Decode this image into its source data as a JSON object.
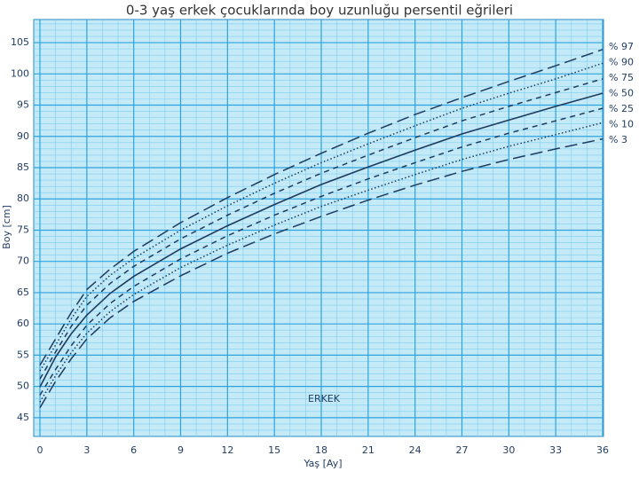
{
  "chart_data": {
    "type": "line",
    "title": "0-3 yaş erkek çocuklarında boy uzunluğu persentil eğrileri",
    "x_label": "Yaş [Ay]",
    "y_label": "Boy [cm]",
    "annotation": "ERKEK",
    "x": [
      0,
      1,
      2,
      3,
      4.5,
      6,
      9,
      12,
      15,
      18,
      21,
      24,
      27,
      30,
      33,
      36
    ],
    "series": [
      {
        "name": "% 97",
        "color": "#1f3a5f",
        "style": "long-dash",
        "values": [
          53.4,
          57.6,
          61.8,
          65.5,
          68.8,
          71.6,
          76.2,
          80.2,
          83.9,
          87.3,
          90.5,
          93.5,
          96.2,
          98.8,
          101.3,
          103.9
        ]
      },
      {
        "name": "% 90",
        "color": "#1f3a5f",
        "style": "dotted",
        "values": [
          52.5,
          56.6,
          60.8,
          64.4,
          67.8,
          70.5,
          75.0,
          78.9,
          82.5,
          85.8,
          88.8,
          91.7,
          94.5,
          96.9,
          99.2,
          101.7
        ]
      },
      {
        "name": "% 75",
        "color": "#1f3a5f",
        "style": "dashed",
        "values": [
          51.2,
          55.5,
          59.6,
          63.0,
          66.5,
          69.2,
          73.6,
          77.4,
          80.9,
          84.1,
          87.0,
          89.8,
          92.5,
          94.8,
          97.0,
          99.2
        ]
      },
      {
        "name": "% 50",
        "color": "#1f3a5f",
        "style": "solid",
        "values": [
          49.9,
          54.7,
          58.4,
          61.4,
          64.9,
          67.6,
          72.0,
          75.7,
          79.1,
          82.3,
          85.1,
          87.8,
          90.4,
          92.6,
          94.8,
          96.9
        ]
      },
      {
        "name": "% 25",
        "color": "#1f3a5f",
        "style": "dashed",
        "values": [
          48.6,
          52.7,
          56.5,
          59.8,
          63.3,
          66.0,
          70.4,
          74.1,
          77.4,
          80.4,
          83.2,
          85.8,
          88.3,
          90.5,
          92.5,
          94.5
        ]
      },
      {
        "name": "% 10",
        "color": "#1f3a5f",
        "style": "dotted",
        "values": [
          47.5,
          51.7,
          55.4,
          58.5,
          62.0,
          64.7,
          69.0,
          72.6,
          75.8,
          78.8,
          81.4,
          83.9,
          86.3,
          88.4,
          90.3,
          92.2
        ]
      },
      {
        "name": "% 3",
        "color": "#1f3a5f",
        "style": "long-dash",
        "values": [
          46.6,
          50.8,
          54.4,
          57.6,
          61.0,
          63.6,
          67.7,
          71.3,
          74.4,
          77.2,
          79.8,
          82.2,
          84.4,
          86.3,
          88.0,
          89.6
        ]
      }
    ],
    "xlim": [
      0,
      36
    ],
    "ylim": [
      42,
      108.7
    ],
    "xticks": [
      0,
      3,
      6,
      9,
      12,
      15,
      18,
      21,
      24,
      27,
      30,
      33,
      36
    ],
    "yticks": [
      45,
      50,
      55,
      60,
      65,
      70,
      75,
      80,
      85,
      90,
      95,
      100,
      105
    ],
    "grid": true
  }
}
